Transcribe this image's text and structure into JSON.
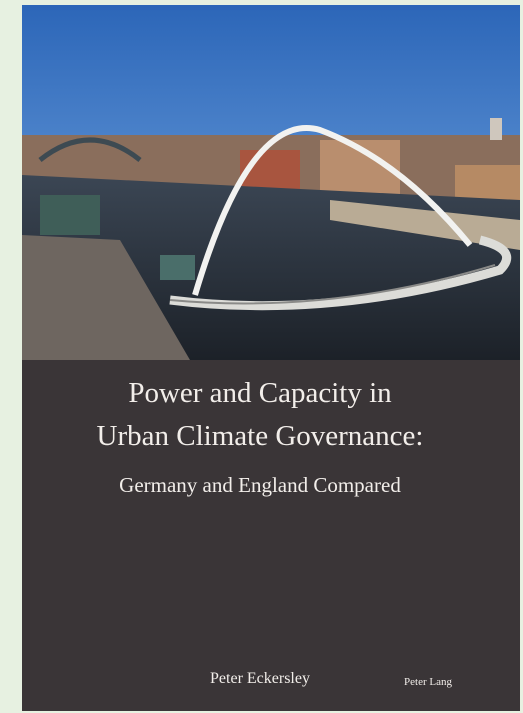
{
  "cover": {
    "title_lines": [
      "Power and Capacity in",
      "Urban Climate Governance:"
    ],
    "subtitle": "Germany and England Compared",
    "author": "Peter Eckersley",
    "publisher": "Peter Lang"
  }
}
